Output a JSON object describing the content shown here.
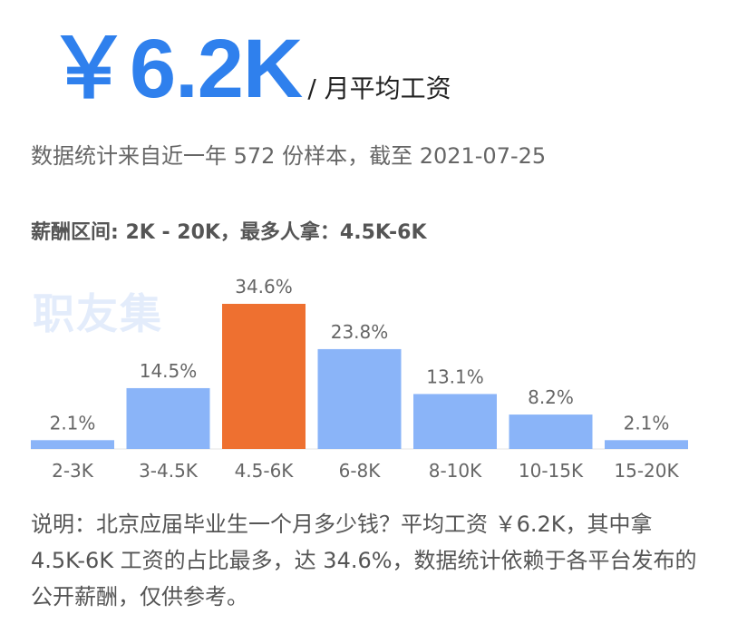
{
  "header": {
    "amount": "￥6.2K",
    "unit": "/ 月平均工资"
  },
  "subtitle": "数据统计来自近一年 572 份样本，截至 2021-07-25",
  "range_text": "薪酬区间: 2K - 20K，最多人拿：4.5K-6K",
  "watermark": "职友集",
  "description": "说明：北京应届毕业生一个月多少钱？平均工资 ￥6.2K，其中拿 4.5K-6K 工资的占比最多，达 34.6%，数据统计依赖于各平台发布的公开薪酬，仅供参考。",
  "colors": {
    "accent": "#2f80ed",
    "bar": "#8ab4f8",
    "highlight": "#ee7030"
  },
  "chart_data": {
    "type": "bar",
    "categories": [
      "2-3K",
      "3-4.5K",
      "4.5-6K",
      "6-8K",
      "8-10K",
      "10-15K",
      "15-20K"
    ],
    "values": [
      2.1,
      14.5,
      34.6,
      23.8,
      13.1,
      8.2,
      2.1
    ],
    "labels": [
      "2.1%",
      "14.5%",
      "34.6%",
      "23.8%",
      "13.1%",
      "8.2%",
      "2.1%"
    ],
    "highlight_index": 2,
    "ylim": [
      0,
      34.6
    ],
    "grid": false,
    "title": "",
    "xlabel": "",
    "ylabel": ""
  }
}
